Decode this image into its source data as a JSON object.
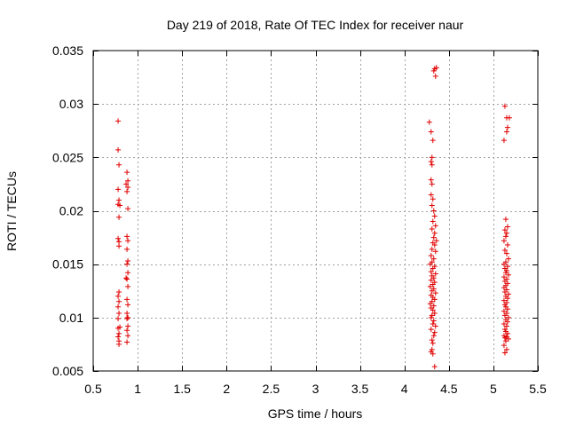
{
  "chart_data": {
    "type": "scatter",
    "title": "Day 219 of 2018, Rate Of TEC Index for receiver naur",
    "xlabel": "GPS time / hours",
    "ylabel": "ROTI / TECUs",
    "xlim": [
      0.5,
      5.5
    ],
    "ylim": [
      0.005,
      0.035
    ],
    "xticks": [
      0.5,
      1,
      1.5,
      2,
      2.5,
      3,
      3.5,
      4,
      4.5,
      5,
      5.5
    ],
    "xtick_labels": [
      "0.5",
      "1",
      "1.5",
      "2",
      "2.5",
      "3",
      "3.5",
      "4",
      "4.5",
      "5",
      "5.5"
    ],
    "yticks": [
      0.005,
      0.01,
      0.015,
      0.02,
      0.025,
      0.03,
      0.035
    ],
    "ytick_labels": [
      "0.005",
      "0.01",
      "0.015",
      "0.02",
      "0.025",
      "0.03",
      "0.035"
    ],
    "grid": true,
    "marker": "+",
    "color": "#e00000",
    "series": [
      {
        "name": "ROTI",
        "points": [
          [
            0.78,
            0.0284
          ],
          [
            0.78,
            0.0257
          ],
          [
            0.79,
            0.0243
          ],
          [
            0.78,
            0.022
          ],
          [
            0.79,
            0.021
          ],
          [
            0.78,
            0.0206
          ],
          [
            0.8,
            0.0205
          ],
          [
            0.79,
            0.0194
          ],
          [
            0.78,
            0.0174
          ],
          [
            0.79,
            0.0171
          ],
          [
            0.79,
            0.0167
          ],
          [
            0.79,
            0.0124
          ],
          [
            0.78,
            0.012
          ],
          [
            0.79,
            0.0115
          ],
          [
            0.78,
            0.011
          ],
          [
            0.79,
            0.0104
          ],
          [
            0.78,
            0.0099
          ],
          [
            0.8,
            0.0091
          ],
          [
            0.78,
            0.009
          ],
          [
            0.79,
            0.0085
          ],
          [
            0.78,
            0.0082
          ],
          [
            0.79,
            0.0078
          ],
          [
            0.79,
            0.0075
          ],
          [
            0.88,
            0.0236
          ],
          [
            0.89,
            0.0228
          ],
          [
            0.87,
            0.0225
          ],
          [
            0.89,
            0.0222
          ],
          [
            0.88,
            0.0218
          ],
          [
            0.89,
            0.0202
          ],
          [
            0.88,
            0.0176
          ],
          [
            0.89,
            0.0172
          ],
          [
            0.88,
            0.0164
          ],
          [
            0.89,
            0.0153
          ],
          [
            0.88,
            0.015
          ],
          [
            0.89,
            0.0142
          ],
          [
            0.87,
            0.0137
          ],
          [
            0.88,
            0.0136
          ],
          [
            0.89,
            0.0129
          ],
          [
            0.88,
            0.0117
          ],
          [
            0.89,
            0.0112
          ],
          [
            0.88,
            0.0104
          ],
          [
            0.89,
            0.01
          ],
          [
            0.88,
            0.0099
          ],
          [
            0.89,
            0.0092
          ],
          [
            0.88,
            0.0088
          ],
          [
            0.89,
            0.0083
          ],
          [
            0.88,
            0.0077
          ],
          [
            4.34,
            0.0333
          ],
          [
            4.36,
            0.0334
          ],
          [
            4.33,
            0.0331
          ],
          [
            4.35,
            0.0326
          ],
          [
            4.28,
            0.0283
          ],
          [
            4.3,
            0.0274
          ],
          [
            4.32,
            0.0266
          ],
          [
            4.31,
            0.025
          ],
          [
            4.3,
            0.0246
          ],
          [
            4.31,
            0.0243
          ],
          [
            4.3,
            0.0229
          ],
          [
            4.31,
            0.0225
          ],
          [
            4.3,
            0.0215
          ],
          [
            4.32,
            0.0211
          ],
          [
            4.31,
            0.0205
          ],
          [
            4.33,
            0.02
          ],
          [
            4.34,
            0.0195
          ],
          [
            4.32,
            0.019
          ],
          [
            4.35,
            0.0186
          ],
          [
            4.31,
            0.0183
          ],
          [
            4.34,
            0.0179
          ],
          [
            4.33,
            0.0175
          ],
          [
            4.36,
            0.0172
          ],
          [
            4.32,
            0.017
          ],
          [
            4.34,
            0.0168
          ],
          [
            4.31,
            0.0164
          ],
          [
            4.35,
            0.0162
          ],
          [
            4.3,
            0.0158
          ],
          [
            4.33,
            0.0155
          ],
          [
            4.31,
            0.0152
          ],
          [
            4.29,
            0.015
          ],
          [
            4.34,
            0.0148
          ],
          [
            4.32,
            0.0146
          ],
          [
            4.3,
            0.0143
          ],
          [
            4.35,
            0.0141
          ],
          [
            4.31,
            0.0139
          ],
          [
            4.33,
            0.0137
          ],
          [
            4.3,
            0.0135
          ],
          [
            4.34,
            0.0133
          ],
          [
            4.32,
            0.0131
          ],
          [
            4.29,
            0.0129
          ],
          [
            4.33,
            0.0127
          ],
          [
            4.31,
            0.0125
          ],
          [
            4.35,
            0.0123
          ],
          [
            4.3,
            0.0121
          ],
          [
            4.32,
            0.0119
          ],
          [
            4.34,
            0.0117
          ],
          [
            4.31,
            0.0115
          ],
          [
            4.29,
            0.0113
          ],
          [
            4.33,
            0.0111
          ],
          [
            4.3,
            0.0109
          ],
          [
            4.32,
            0.0107
          ],
          [
            4.34,
            0.0104
          ],
          [
            4.31,
            0.0102
          ],
          [
            4.3,
            0.01
          ],
          [
            4.33,
            0.0097
          ],
          [
            4.32,
            0.0094
          ],
          [
            4.35,
            0.0092
          ],
          [
            4.3,
            0.0089
          ],
          [
            4.34,
            0.0086
          ],
          [
            4.33,
            0.0083
          ],
          [
            4.31,
            0.0079
          ],
          [
            4.32,
            0.0076
          ],
          [
            4.31,
            0.007
          ],
          [
            4.3,
            0.0068
          ],
          [
            4.32,
            0.0066
          ],
          [
            4.34,
            0.0054
          ],
          [
            5.13,
            0.0298
          ],
          [
            5.15,
            0.0287
          ],
          [
            5.18,
            0.0287
          ],
          [
            5.16,
            0.0278
          ],
          [
            5.15,
            0.0274
          ],
          [
            5.12,
            0.0266
          ],
          [
            5.14,
            0.0192
          ],
          [
            5.16,
            0.0185
          ],
          [
            5.13,
            0.0182
          ],
          [
            5.15,
            0.0179
          ],
          [
            5.14,
            0.0176
          ],
          [
            5.12,
            0.0172
          ],
          [
            5.16,
            0.0168
          ],
          [
            5.13,
            0.0163
          ],
          [
            5.15,
            0.016
          ],
          [
            5.17,
            0.0155
          ],
          [
            5.14,
            0.0152
          ],
          [
            5.12,
            0.015
          ],
          [
            5.16,
            0.0148
          ],
          [
            5.13,
            0.0146
          ],
          [
            5.15,
            0.0144
          ],
          [
            5.14,
            0.0142
          ],
          [
            5.17,
            0.014
          ],
          [
            5.12,
            0.0138
          ],
          [
            5.15,
            0.0136
          ],
          [
            5.13,
            0.0134
          ],
          [
            5.16,
            0.0132
          ],
          [
            5.14,
            0.013
          ],
          [
            5.12,
            0.0128
          ],
          [
            5.15,
            0.0126
          ],
          [
            5.13,
            0.0124
          ],
          [
            5.17,
            0.0122
          ],
          [
            5.14,
            0.012
          ],
          [
            5.16,
            0.0118
          ],
          [
            5.12,
            0.0116
          ],
          [
            5.15,
            0.0114
          ],
          [
            5.13,
            0.0112
          ],
          [
            5.14,
            0.011
          ],
          [
            5.16,
            0.0108
          ],
          [
            5.12,
            0.0106
          ],
          [
            5.15,
            0.0104
          ],
          [
            5.13,
            0.0102
          ],
          [
            5.17,
            0.01
          ],
          [
            5.14,
            0.0098
          ],
          [
            5.16,
            0.0096
          ],
          [
            5.12,
            0.0094
          ],
          [
            5.15,
            0.0092
          ],
          [
            5.13,
            0.0089
          ],
          [
            5.14,
            0.0087
          ],
          [
            5.16,
            0.0085
          ],
          [
            5.12,
            0.0083
          ],
          [
            5.15,
            0.0082
          ],
          [
            5.13,
            0.0081
          ],
          [
            5.17,
            0.008
          ],
          [
            5.14,
            0.0078
          ],
          [
            5.12,
            0.0074
          ],
          [
            5.15,
            0.007
          ],
          [
            5.13,
            0.0067
          ]
        ]
      }
    ]
  }
}
